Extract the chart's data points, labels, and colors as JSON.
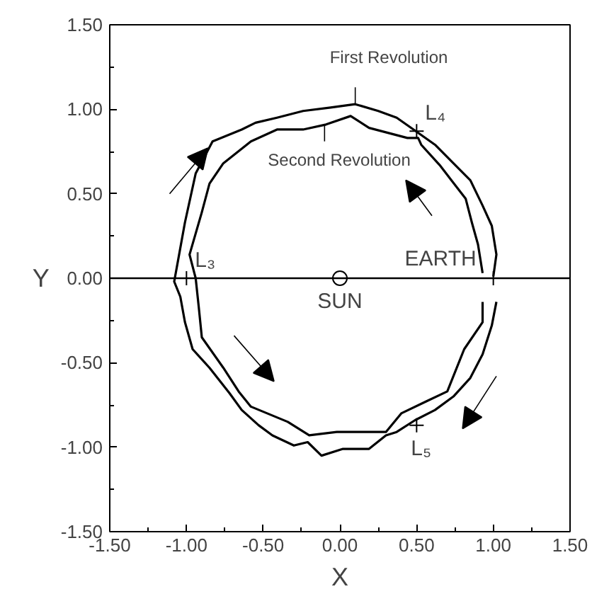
{
  "chart_data": {
    "type": "line",
    "xlabel": "X",
    "ylabel": "Y",
    "xlim": [
      -1.5,
      1.5
    ],
    "ylim": [
      -1.5,
      1.5
    ],
    "xticks": [
      {
        "value": -1.5,
        "label": "-1.50"
      },
      {
        "value": -1.0,
        "label": "-1.00"
      },
      {
        "value": -0.5,
        "label": "-0.50"
      },
      {
        "value": 0,
        "label": "0.00"
      },
      {
        "value": 0.5,
        "label": "0.50"
      },
      {
        "value": 1.0,
        "label": "1.00"
      },
      {
        "value": 1.5,
        "label": "1.50"
      }
    ],
    "yticks": [
      {
        "value": -1.5,
        "label": "-1.50"
      },
      {
        "value": -1.0,
        "label": "-1.00"
      },
      {
        "value": -0.5,
        "label": "-0.50"
      },
      {
        "value": 0,
        "label": "0.00"
      },
      {
        "value": 0.5,
        "label": "0.50"
      },
      {
        "value": 1.0,
        "label": "1.00"
      },
      {
        "value": 1.5,
        "label": "1.50"
      }
    ],
    "grid": false,
    "line_style": "solid",
    "series": [
      {
        "color": "#000000",
        "x": [
          1.0,
          1.02,
          0.99,
          0.93,
          0.85,
          0.74,
          0.62,
          0.48,
          0.37,
          0.25,
          0.1,
          -0.06,
          -0.24,
          -0.41,
          -0.55,
          -0.64,
          -0.83,
          -0.94,
          -1.01,
          -1.08,
          -1.04,
          -1.01,
          -0.96,
          -0.85,
          -0.72,
          -0.64,
          -0.53,
          -0.44,
          -0.3,
          -0.21,
          -0.12,
          0.02,
          0.19,
          0.3,
          0.37,
          0.49,
          0.62,
          0.74,
          0.85,
          0.93,
          0.99,
          1.02
        ],
        "values": [
          0.01,
          0.14,
          0.31,
          0.43,
          0.58,
          0.68,
          0.79,
          0.88,
          0.95,
          0.99,
          1.03,
          1.01,
          0.99,
          0.95,
          0.92,
          0.88,
          0.81,
          0.62,
          0.33,
          -0.02,
          -0.11,
          -0.26,
          -0.42,
          -0.53,
          -0.68,
          -0.78,
          -0.87,
          -0.93,
          -0.99,
          -0.97,
          -1.05,
          -1.01,
          -1.01,
          -0.93,
          -0.91,
          -0.84,
          -0.78,
          -0.7,
          -0.59,
          -0.45,
          -0.28,
          -0.14
        ]
      },
      {
        "color": "#000000",
        "x": [
          0.93,
          0.9,
          0.86,
          0.82,
          0.65,
          0.53,
          0.51,
          0.44,
          0.19,
          0.07,
          -0.09,
          -0.24,
          -0.41,
          -0.58,
          -0.76,
          -0.85,
          -0.9,
          -0.98,
          -0.94,
          -0.92,
          -0.9,
          -0.76,
          -0.66,
          -0.58,
          -0.34,
          -0.2,
          -0.02,
          0.12,
          0.3,
          0.4,
          0.56,
          0.7,
          0.81,
          0.93,
          0.93
        ],
        "values": [
          0.03,
          0.2,
          0.33,
          0.47,
          0.67,
          0.79,
          0.83,
          0.83,
          0.89,
          0.96,
          0.91,
          0.88,
          0.88,
          0.81,
          0.68,
          0.56,
          0.39,
          0.14,
          0.0,
          -0.17,
          -0.35,
          -0.53,
          -0.67,
          -0.76,
          -0.85,
          -0.93,
          -0.91,
          -0.91,
          -0.91,
          -0.8,
          -0.73,
          -0.67,
          -0.42,
          -0.26,
          -0.14
        ]
      },
      {
        "type": "scatter",
        "marker": "cross",
        "color": "#000000",
        "x": [
          -1.0,
          0.5,
          0.5,
          1.0
        ],
        "values": [
          0,
          0.87,
          -0.87,
          0
        ]
      },
      {
        "type": "scatter",
        "marker": "circle",
        "color": "#000000",
        "x": [
          0
        ],
        "values": [
          0
        ]
      }
    ],
    "ref_lines": [
      {
        "axis": "y",
        "value": 0,
        "color": "#000000"
      }
    ],
    "annotations": [
      {
        "text": "L₃",
        "x": -1.0,
        "y": 0
      },
      {
        "text": "L₄",
        "x": 0.5,
        "y": 0.87
      },
      {
        "text": "L₅",
        "x": 0.5,
        "y": -0.87
      },
      {
        "text": "EARTH",
        "x": 1.0,
        "y": 0
      },
      {
        "text": "SUN",
        "x": 0,
        "y": 0
      },
      {
        "text": "First Revolution",
        "x": 0.1,
        "y": 1.03
      },
      {
        "text": "Second Revolution",
        "x": -0.1,
        "y": 0.91
      }
    ]
  }
}
